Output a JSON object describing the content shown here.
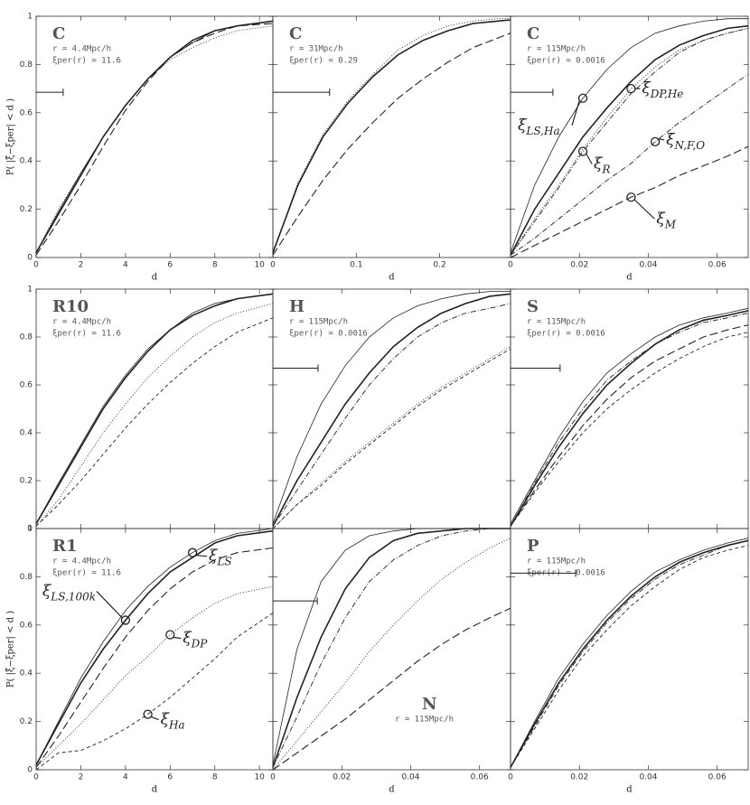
{
  "chart_data": [
    {
      "type": "line",
      "label": "C",
      "notes": [
        "r = 4.4Mpc/h",
        "ξper(r) = 11.6"
      ],
      "xlabel": "d",
      "ylabel": "P( |ξ̂−ξper| < d )",
      "xlim": [
        0,
        10.6
      ],
      "ylim": [
        0,
        1
      ],
      "xticks": [
        0,
        2,
        4,
        6,
        8,
        10
      ],
      "yticks": [
        0,
        0.2,
        0.4,
        0.6,
        0.8,
        1
      ],
      "errorbar": {
        "y": 0.685,
        "width": 1.21
      },
      "x": [
        0,
        1,
        2,
        3,
        4,
        5,
        6,
        7,
        8,
        9,
        10.6
      ],
      "series": [
        {
          "style": "thick",
          "values": [
            0.02,
            0.18,
            0.34,
            0.5,
            0.63,
            0.74,
            0.83,
            0.9,
            0.94,
            0.96,
            0.98
          ]
        },
        {
          "style": "solid",
          "values": [
            0.02,
            0.19,
            0.35,
            0.5,
            0.63,
            0.74,
            0.83,
            0.89,
            0.94,
            0.96,
            0.98
          ]
        },
        {
          "style": "longdash",
          "values": [
            0.01,
            0.15,
            0.3,
            0.46,
            0.61,
            0.73,
            0.83,
            0.89,
            0.93,
            0.96,
            0.97
          ]
        },
        {
          "style": "dotted",
          "values": [
            0.02,
            0.2,
            0.35,
            0.5,
            0.63,
            0.74,
            0.82,
            0.87,
            0.91,
            0.94,
            0.96
          ]
        }
      ]
    },
    {
      "type": "line",
      "label": "C",
      "notes": [
        "r = 31Mpc/h",
        "ξper(r) = 0.29"
      ],
      "xlabel": "d",
      "xlim": [
        0,
        0.285
      ],
      "ylim": [
        0,
        1
      ],
      "xticks": [
        0,
        0.1,
        0.2
      ],
      "yticks": [
        0,
        0.2,
        0.4,
        0.6,
        0.8,
        1
      ],
      "errorbar": {
        "y": 0.685,
        "width": 0.068
      },
      "x": [
        0,
        0.03,
        0.06,
        0.09,
        0.12,
        0.15,
        0.18,
        0.21,
        0.24,
        0.27,
        0.285
      ],
      "series": [
        {
          "style": "thick",
          "values": [
            0.02,
            0.3,
            0.5,
            0.64,
            0.75,
            0.84,
            0.9,
            0.94,
            0.97,
            0.98,
            0.985
          ]
        },
        {
          "style": "dotted",
          "values": [
            0.02,
            0.31,
            0.51,
            0.65,
            0.76,
            0.86,
            0.92,
            0.96,
            0.98,
            0.99,
            0.99
          ]
        },
        {
          "style": "longdash",
          "values": [
            0.01,
            0.17,
            0.32,
            0.45,
            0.56,
            0.66,
            0.74,
            0.81,
            0.87,
            0.91,
            0.93
          ]
        }
      ]
    },
    {
      "type": "line",
      "label": "C",
      "notes": [
        "r = 115Mpc/h",
        "ξper(r) = 0.0016"
      ],
      "xlabel": "d",
      "xlim": [
        0,
        0.069
      ],
      "ylim": [
        0,
        1
      ],
      "xticks": [
        0,
        0.02,
        0.04,
        0.06
      ],
      "yticks": [
        0,
        0.2,
        0.4,
        0.6,
        0.8,
        1
      ],
      "errorbar": {
        "y": 0.685,
        "width": 0.0123
      },
      "x": [
        0,
        0.007,
        0.014,
        0.021,
        0.028,
        0.035,
        0.042,
        0.049,
        0.056,
        0.063,
        0.069
      ],
      "series": [
        {
          "name": "ξLS,Ha",
          "style": "solid",
          "values": [
            0.02,
            0.3,
            0.5,
            0.66,
            0.78,
            0.87,
            0.93,
            0.96,
            0.98,
            0.99,
            0.99
          ]
        },
        {
          "style": "thick",
          "values": [
            0.01,
            0.2,
            0.35,
            0.5,
            0.62,
            0.73,
            0.82,
            0.88,
            0.92,
            0.95,
            0.96
          ]
        },
        {
          "name": "ξR",
          "style": "dashdot",
          "values": [
            0.01,
            0.15,
            0.29,
            0.44,
            0.56,
            0.68,
            0.77,
            0.85,
            0.9,
            0.93,
            0.95
          ]
        },
        {
          "name": "ξDP,He",
          "style": "dotted",
          "values": [
            0.01,
            0.16,
            0.3,
            0.45,
            0.58,
            0.7,
            0.79,
            0.86,
            0.9,
            0.93,
            0.95
          ]
        },
        {
          "name": "ξN,F,O",
          "style": "dashdot",
          "values": [
            0.01,
            0.08,
            0.16,
            0.24,
            0.32,
            0.39,
            0.48,
            0.56,
            0.63,
            0.7,
            0.76
          ]
        },
        {
          "name": "ξM",
          "style": "longdash",
          "values": [
            0,
            0.05,
            0.1,
            0.15,
            0.2,
            0.25,
            0.29,
            0.34,
            0.38,
            0.42,
            0.46
          ]
        }
      ]
    },
    {
      "type": "line",
      "label": "R10",
      "notes": [
        "r = 4.4Mpc/h",
        "ξper(r) = 11.6"
      ],
      "xlim": [
        0,
        10.6
      ],
      "ylim": [
        0,
        1
      ],
      "xticks": [
        0,
        2,
        4,
        6,
        8,
        10
      ],
      "yticks": [
        0,
        0.2,
        0.4,
        0.6,
        0.8,
        1
      ],
      "x": [
        0,
        1,
        2,
        3,
        4,
        5,
        6,
        7,
        8,
        9,
        10.6
      ],
      "series": [
        {
          "style": "thick",
          "values": [
            0.02,
            0.18,
            0.34,
            0.5,
            0.63,
            0.74,
            0.83,
            0.89,
            0.93,
            0.96,
            0.98
          ]
        },
        {
          "style": "solid",
          "values": [
            0.02,
            0.19,
            0.35,
            0.51,
            0.64,
            0.75,
            0.83,
            0.9,
            0.94,
            0.96,
            0.98
          ]
        },
        {
          "style": "dotted",
          "values": [
            0.01,
            0.12,
            0.26,
            0.4,
            0.52,
            0.63,
            0.72,
            0.8,
            0.86,
            0.9,
            0.94
          ]
        },
        {
          "style": "dashed",
          "values": [
            0.01,
            0.1,
            0.2,
            0.31,
            0.42,
            0.52,
            0.61,
            0.69,
            0.76,
            0.82,
            0.88
          ]
        }
      ]
    },
    {
      "type": "line",
      "label": "H",
      "notes": [
        "r = 115Mpc/h",
        "ξper(r) = 0.0016"
      ],
      "xlim": [
        0,
        0.069
      ],
      "ylim": [
        0,
        1
      ],
      "xticks": [
        0,
        0.02,
        0.04,
        0.06
      ],
      "yticks": [
        0,
        0.2,
        0.4,
        0.6,
        0.8,
        1
      ],
      "errorbar": {
        "y": 0.67,
        "width": 0.0131
      },
      "x": [
        0,
        0.007,
        0.014,
        0.021,
        0.028,
        0.035,
        0.042,
        0.049,
        0.056,
        0.063,
        0.069
      ],
      "series": [
        {
          "style": "solid",
          "values": [
            0.02,
            0.3,
            0.52,
            0.68,
            0.8,
            0.88,
            0.93,
            0.96,
            0.98,
            0.99,
            0.99
          ]
        },
        {
          "style": "thick",
          "values": [
            0.01,
            0.2,
            0.36,
            0.52,
            0.65,
            0.76,
            0.84,
            0.9,
            0.94,
            0.97,
            0.98
          ]
        },
        {
          "style": "dashdot",
          "values": [
            0.01,
            0.16,
            0.31,
            0.46,
            0.6,
            0.71,
            0.8,
            0.86,
            0.9,
            0.92,
            0.94
          ]
        },
        {
          "style": "dotted",
          "values": [
            0,
            0.1,
            0.19,
            0.28,
            0.36,
            0.44,
            0.52,
            0.59,
            0.65,
            0.71,
            0.76
          ]
        },
        {
          "style": "dashed",
          "values": [
            0,
            0.1,
            0.18,
            0.27,
            0.35,
            0.43,
            0.51,
            0.58,
            0.64,
            0.7,
            0.75
          ]
        }
      ]
    },
    {
      "type": "line",
      "label": "S",
      "notes": [
        "r = 115Mpc/h",
        "ξper(r) = 0.0016"
      ],
      "xlim": [
        0,
        0.069
      ],
      "ylim": [
        0,
        1
      ],
      "xticks": [
        0,
        0.02,
        0.04,
        0.06
      ],
      "yticks": [
        0,
        0.2,
        0.4,
        0.6,
        0.8,
        1
      ],
      "errorbar": {
        "y": 0.67,
        "width": 0.0144
      },
      "x": [
        0,
        0.007,
        0.014,
        0.021,
        0.028,
        0.035,
        0.042,
        0.049,
        0.056,
        0.063,
        0.069
      ],
      "series": [
        {
          "style": "solid",
          "values": [
            0.02,
            0.2,
            0.38,
            0.53,
            0.65,
            0.73,
            0.8,
            0.85,
            0.88,
            0.9,
            0.92
          ]
        },
        {
          "style": "thick",
          "values": [
            0.01,
            0.18,
            0.34,
            0.48,
            0.6,
            0.69,
            0.77,
            0.83,
            0.87,
            0.89,
            0.91
          ]
        },
        {
          "style": "dashdot",
          "values": [
            0.01,
            0.19,
            0.36,
            0.5,
            0.62,
            0.7,
            0.77,
            0.82,
            0.86,
            0.88,
            0.9
          ]
        },
        {
          "style": "longdash",
          "values": [
            0.01,
            0.16,
            0.3,
            0.43,
            0.54,
            0.63,
            0.7,
            0.75,
            0.8,
            0.83,
            0.85
          ]
        },
        {
          "style": "dashed",
          "values": [
            0.01,
            0.15,
            0.28,
            0.4,
            0.5,
            0.58,
            0.65,
            0.71,
            0.76,
            0.8,
            0.82
          ]
        }
      ]
    },
    {
      "type": "line",
      "label": "R1",
      "notes": [
        "r = 4.4Mpc/h",
        "ξper(r) = 11.6"
      ],
      "xlabel": "d",
      "ylabel": "P( |ξ̂−ξper| < d )",
      "xlim": [
        0,
        10.6
      ],
      "ylim": [
        0,
        1
      ],
      "xticks": [
        0,
        2,
        4,
        6,
        8,
        10
      ],
      "yticks": [
        0,
        0.2,
        0.4,
        0.6,
        0.8,
        1
      ],
      "x": [
        0,
        1,
        2,
        3,
        4,
        5,
        6,
        7,
        8,
        9,
        10.6
      ],
      "series": [
        {
          "name": "ξLS",
          "style": "solid",
          "values": [
            0.02,
            0.2,
            0.38,
            0.53,
            0.66,
            0.76,
            0.84,
            0.9,
            0.95,
            0.98,
            1.0
          ]
        },
        {
          "name": "ξLS,100k",
          "style": "thick",
          "values": [
            0.02,
            0.19,
            0.36,
            0.5,
            0.62,
            0.73,
            0.82,
            0.88,
            0.94,
            0.97,
            0.99
          ]
        },
        {
          "style": "longdash",
          "values": [
            0.01,
            0.14,
            0.28,
            0.42,
            0.55,
            0.66,
            0.75,
            0.82,
            0.87,
            0.9,
            0.92
          ]
        },
        {
          "name": "ξDP",
          "style": "dotted",
          "values": [
            0.01,
            0.1,
            0.19,
            0.29,
            0.39,
            0.47,
            0.56,
            0.63,
            0.69,
            0.73,
            0.76
          ]
        },
        {
          "name": "ξHa",
          "style": "dashed",
          "values": [
            0,
            0.07,
            0.08,
            0.12,
            0.17,
            0.23,
            0.3,
            0.38,
            0.46,
            0.55,
            0.65
          ]
        }
      ]
    },
    {
      "type": "line",
      "label": "N",
      "notes": [
        "r = 115Mpc/h"
      ],
      "xlabel": "d",
      "xlim": [
        0,
        0.069
      ],
      "ylim": [
        0,
        1
      ],
      "xticks": [
        0,
        0.02,
        0.04,
        0.06
      ],
      "yticks": [
        0,
        0.2,
        0.4,
        0.6,
        0.8,
        1
      ],
      "errorbar": {
        "y": 0.7,
        "width": 0.0129
      },
      "x": [
        0,
        0.007,
        0.014,
        0.021,
        0.028,
        0.035,
        0.042,
        0.049,
        0.056,
        0.063,
        0.069
      ],
      "series": [
        {
          "style": "solid",
          "values": [
            0.02,
            0.5,
            0.78,
            0.91,
            0.97,
            0.99,
            1.0,
            1.0,
            1.0,
            1.0,
            1.0
          ]
        },
        {
          "style": "thick",
          "values": [
            0.01,
            0.3,
            0.55,
            0.75,
            0.88,
            0.95,
            0.98,
            0.99,
            1.0,
            1.0,
            1.0
          ]
        },
        {
          "style": "dashdot",
          "values": [
            0.01,
            0.22,
            0.44,
            0.63,
            0.78,
            0.87,
            0.93,
            0.97,
            0.99,
            1.0,
            1.0
          ]
        },
        {
          "style": "dotted",
          "values": [
            0,
            0.12,
            0.24,
            0.36,
            0.49,
            0.6,
            0.7,
            0.79,
            0.86,
            0.92,
            0.96
          ]
        },
        {
          "style": "longdash",
          "values": [
            0,
            0.07,
            0.14,
            0.21,
            0.29,
            0.37,
            0.45,
            0.52,
            0.58,
            0.63,
            0.67
          ]
        }
      ]
    },
    {
      "type": "line",
      "label": "P",
      "notes": [
        "r = 115Mpc/h",
        "ξper(r) = 0.0016"
      ],
      "xlabel": "d",
      "xlim": [
        0,
        0.069
      ],
      "ylim": [
        0,
        1
      ],
      "xticks": [
        0,
        0.02,
        0.04,
        0.06
      ],
      "yticks": [
        0,
        0.2,
        0.4,
        0.6,
        0.8,
        1
      ],
      "errorbar": {
        "y": 0.815,
        "width": 0.0189
      },
      "x": [
        0,
        0.007,
        0.014,
        0.021,
        0.028,
        0.035,
        0.042,
        0.049,
        0.056,
        0.063,
        0.069
      ],
      "series": [
        {
          "style": "solid",
          "values": [
            0.01,
            0.2,
            0.38,
            0.52,
            0.64,
            0.74,
            0.82,
            0.87,
            0.91,
            0.94,
            0.96
          ]
        },
        {
          "style": "thick",
          "values": [
            0.01,
            0.19,
            0.36,
            0.5,
            0.62,
            0.72,
            0.8,
            0.86,
            0.9,
            0.93,
            0.95
          ]
        },
        {
          "style": "dashdot",
          "values": [
            0.01,
            0.18,
            0.35,
            0.49,
            0.61,
            0.71,
            0.79,
            0.85,
            0.89,
            0.93,
            0.95
          ]
        },
        {
          "style": "dashed",
          "values": [
            0.01,
            0.17,
            0.33,
            0.47,
            0.58,
            0.68,
            0.76,
            0.83,
            0.88,
            0.91,
            0.93
          ]
        }
      ]
    }
  ]
}
